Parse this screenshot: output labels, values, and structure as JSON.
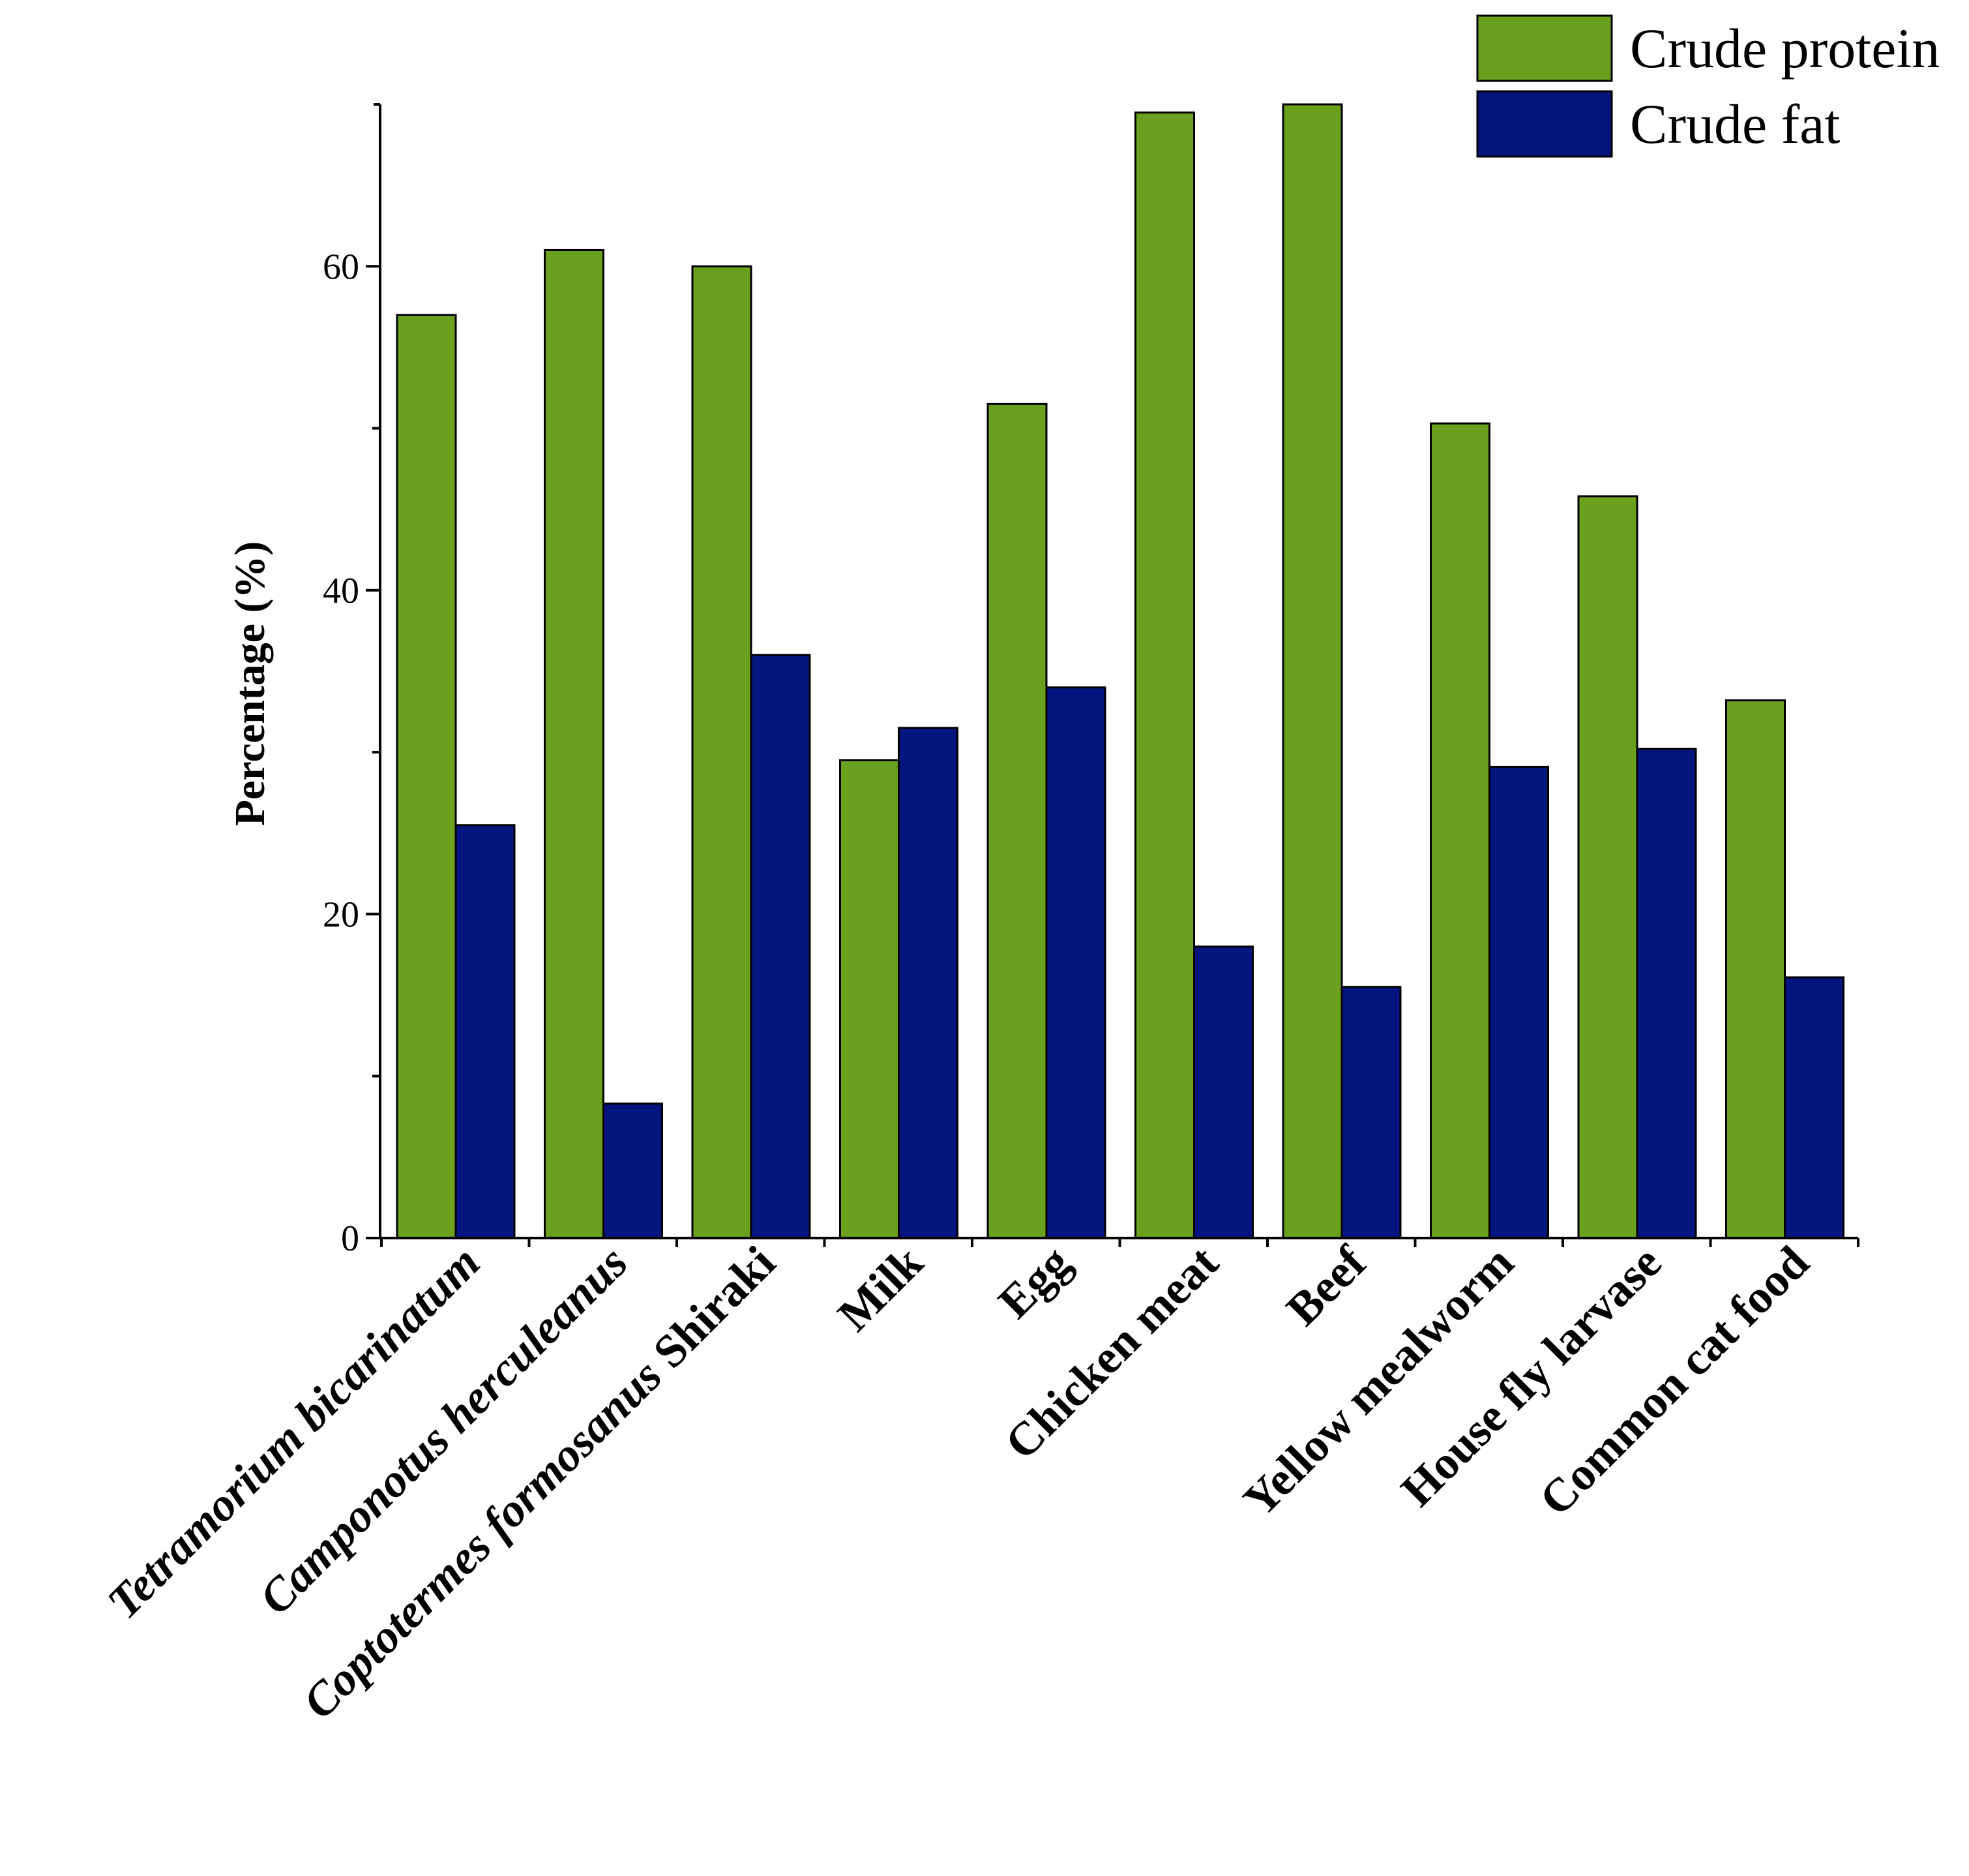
{
  "chart_data": {
    "type": "bar",
    "title": "",
    "xlabel": "",
    "ylabel": "Percentage (%)",
    "ylim": [
      0,
      70
    ],
    "yticks": [
      0,
      20,
      40,
      60
    ],
    "ytick_labels": [
      "0",
      "20",
      "40",
      "60"
    ],
    "categories": [
      [
        {
          "text": "Tetramorium bicarinatum",
          "italic": true
        }
      ],
      [
        {
          "text": "Camponotus herculeanus",
          "italic": true
        }
      ],
      [
        {
          "text": "Coptotermes formosanus",
          "italic": true
        },
        {
          "text": " Shiraki",
          "italic": false
        }
      ],
      [
        {
          "text": "Milk",
          "italic": false
        }
      ],
      [
        {
          "text": "Egg",
          "italic": false
        }
      ],
      [
        {
          "text": "Chicken meat",
          "italic": false
        }
      ],
      [
        {
          "text": "Beef",
          "italic": false
        }
      ],
      [
        {
          "text": "Yellow mealworm",
          "italic": false
        }
      ],
      [
        {
          "text": "House fly larvase",
          "italic": false
        }
      ],
      [
        {
          "text": "Common cat food",
          "italic": false
        }
      ]
    ],
    "series": [
      {
        "name": "Crude protein",
        "color": "#6aa01e",
        "values": [
          57.0,
          61.0,
          60.0,
          29.5,
          51.5,
          69.5,
          70.0,
          50.3,
          45.8,
          33.2
        ]
      },
      {
        "name": "Crude fat",
        "color": "#041580",
        "values": [
          25.5,
          8.3,
          36.0,
          31.5,
          34.0,
          18.0,
          15.5,
          29.1,
          30.2,
          16.1
        ]
      }
    ],
    "legend_position": "top-right",
    "grid": false
  }
}
